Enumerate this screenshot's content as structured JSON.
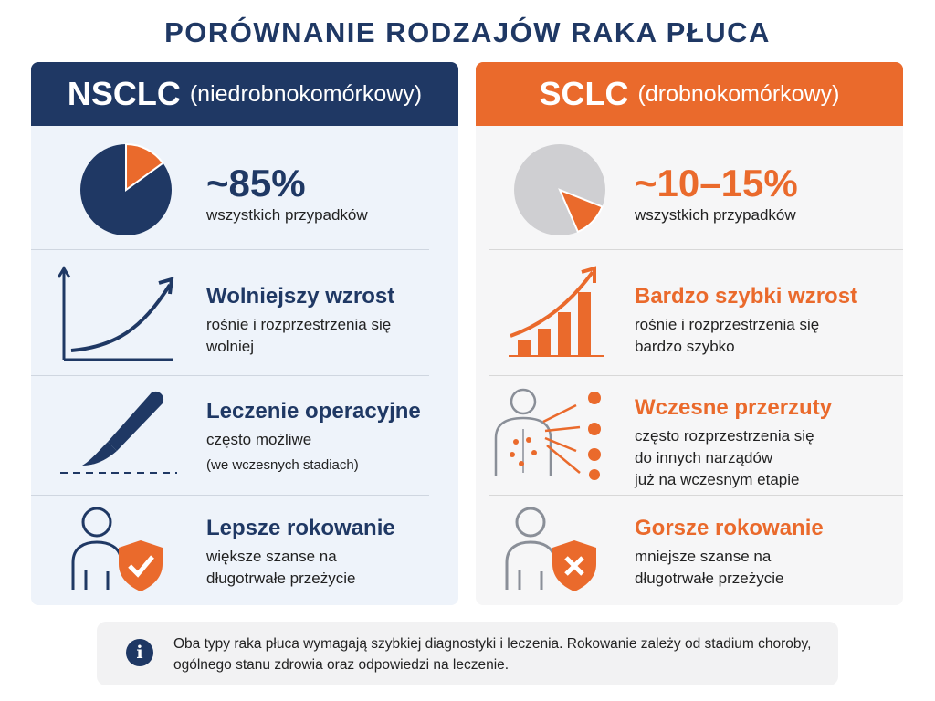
{
  "title": "PORÓWNANIE RODZAJÓW RAKA PŁUCA",
  "colors": {
    "navy": "#1f3864",
    "orange": "#ea6a2c",
    "gray": "#cfcfd2"
  },
  "nsclc": {
    "abbr": "NSCLC",
    "name": "(niedrobnokomórkowy)",
    "share": {
      "value": "~85%",
      "label": "wszystkich przypadków",
      "fraction": 0.85
    },
    "growth": {
      "head": "Wolniejszy wzrost",
      "line1": "rośnie i rozprzestrzenia się",
      "line2": "wolniej",
      "icon": "rising-curve-icon"
    },
    "surgery": {
      "head": "Leczenie operacyjne",
      "line1": "często możliwe",
      "line2": "(we wczesnych stadiach)",
      "icon": "scalpel-icon"
    },
    "prognosis": {
      "head": "Lepsze rokowanie",
      "line1": "większe szanse na",
      "line2": "długotrwałe przeżycie",
      "icon": "person-shield-check-icon"
    }
  },
  "sclc": {
    "abbr": "SCLC",
    "name": "(drobnokomórkowy)",
    "share": {
      "value": "~10–15%",
      "label": "wszystkich przypadków",
      "fraction": 0.125
    },
    "growth": {
      "head": "Bardzo szybki wzrost",
      "line1": "rośnie i rozprzestrzenia się",
      "line2": "bardzo szybko",
      "icon": "rising-bars-icon"
    },
    "metastasis": {
      "head": "Wczesne przerzuty",
      "line1": "często rozprzestrzenia się",
      "line2": "do innych narządów",
      "line3": "już na wczesnym etapie",
      "icon": "body-metastasis-icon"
    },
    "prognosis": {
      "head": "Gorsze rokowanie",
      "line1": "mniejsze szanse na",
      "line2": "długotrwałe przeżycie",
      "icon": "person-shield-x-icon"
    }
  },
  "info": {
    "icon": "info-icon",
    "text": "Oba typy raka płuca wymagają szybkiej diagnostyki i leczenia. Rokowanie zależy od stadium choroby, ogólnego stanu zdrowia oraz odpowiedzi na leczenie."
  }
}
